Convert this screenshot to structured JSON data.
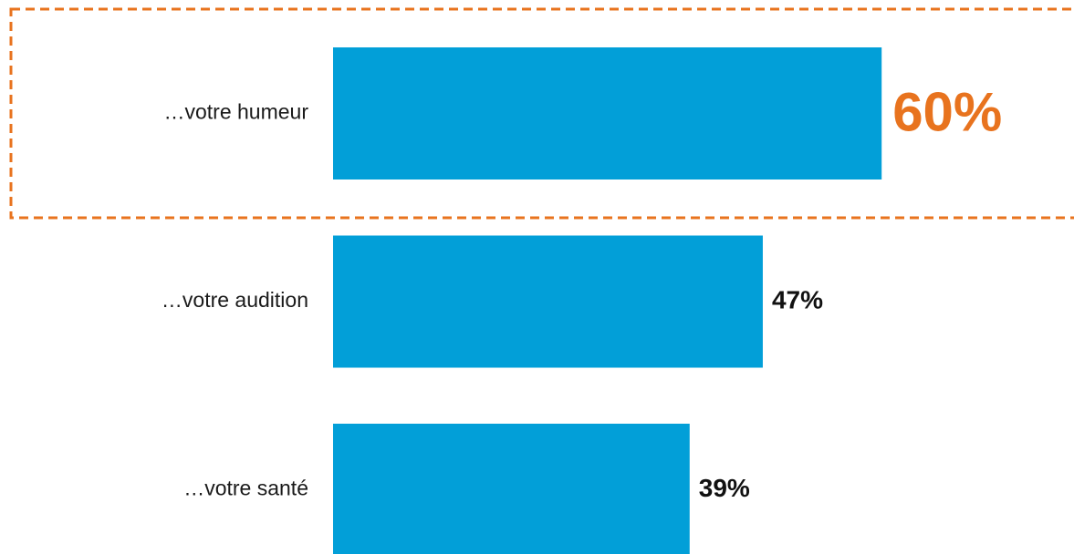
{
  "chart_data": {
    "type": "bar",
    "orientation": "horizontal",
    "categories": [
      "…votre humeur",
      "…votre audition",
      "…votre santé"
    ],
    "values": [
      60,
      47,
      39
    ],
    "value_labels": [
      "60%",
      "47%",
      "39%"
    ],
    "color": "#029fd8",
    "highlight": 0,
    "highlight_color": "#e8731e"
  }
}
